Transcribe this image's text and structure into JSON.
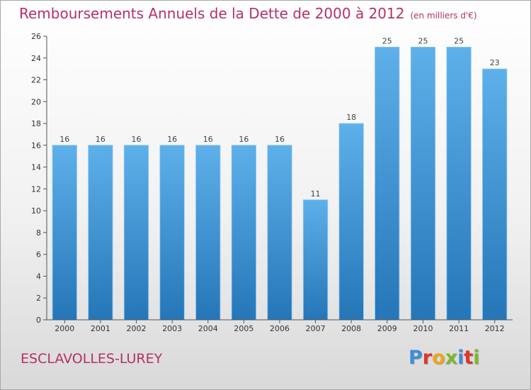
{
  "header": {
    "title": "Remboursements Annuels de la Dette de 2000 à 2012",
    "subtitle": "(en milliers d'€)"
  },
  "footer": {
    "commune": "ESCLAVOLLES-LUREY",
    "logo_letters": [
      "P",
      "r",
      "o",
      "x",
      "i",
      "t",
      "i"
    ],
    "logo_colors": [
      "#3d8fd6",
      "#e0342b",
      "#f2a41c",
      "#7cb82f",
      "#3d8fd6",
      "#e0342b",
      "#7cb82f"
    ]
  },
  "chart_data": {
    "type": "bar",
    "categories": [
      "2000",
      "2001",
      "2002",
      "2003",
      "2004",
      "2005",
      "2006",
      "2007",
      "2008",
      "2009",
      "2010",
      "2011",
      "2012"
    ],
    "values": [
      16,
      16,
      16,
      16,
      16,
      16,
      16,
      11,
      18,
      25,
      25,
      25,
      23
    ],
    "data_labels": [
      "16",
      "16",
      "16",
      "16",
      "16",
      "16",
      "16",
      "11",
      "18",
      "25",
      "25",
      "25",
      "23"
    ],
    "yticks": [
      "0",
      "2",
      "4",
      "6",
      "8",
      "10",
      "12",
      "14",
      "16",
      "18",
      "20",
      "22",
      "24",
      "26"
    ],
    "ylim": [
      0,
      26
    ],
    "grid": false,
    "bar_color_top": "#5eb0ea",
    "bar_color_bottom": "#2576b8",
    "axis_color": "#555555"
  }
}
